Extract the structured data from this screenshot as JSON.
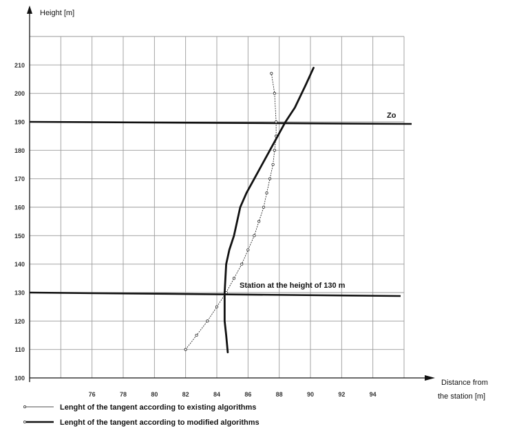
{
  "chart_data": {
    "type": "line",
    "ylabel": "Height [m]",
    "xlabel_lines": [
      "Distance from",
      "the station [m]"
    ],
    "x_ticks": [
      76,
      78,
      80,
      82,
      84,
      86,
      88,
      90,
      92,
      94
    ],
    "y_ticks": [
      100,
      110,
      120,
      130,
      140,
      150,
      160,
      170,
      180,
      190,
      200,
      210
    ],
    "xlim": [
      72,
      96
    ],
    "ylim": [
      100,
      220
    ],
    "grid": true,
    "series": [
      {
        "name": "Lenght of the tangent according to existing algorithms",
        "style": "thin-circles",
        "x": [
          82.0,
          82.7,
          83.4,
          84.0,
          84.6,
          85.1,
          85.6,
          86.0,
          86.4,
          86.7,
          87.0,
          87.2,
          87.4,
          87.6,
          87.7,
          87.8,
          87.8,
          87.7,
          87.5
        ],
        "y": [
          110,
          115,
          120,
          125,
          130,
          135,
          140,
          145,
          150,
          155,
          160,
          165,
          170,
          175,
          180,
          185,
          190,
          200,
          207
        ]
      },
      {
        "name": "Lenght of the tangent according to modified algorithms",
        "style": "thick-solid",
        "x": [
          84.7,
          84.6,
          84.5,
          84.5,
          84.6,
          84.8,
          85.1,
          85.5,
          85.9,
          86.4,
          86.9,
          87.4,
          87.9,
          88.4,
          89.0,
          89.7,
          90.2
        ],
        "y": [
          109,
          115,
          120,
          130,
          140,
          145,
          150,
          160,
          165,
          170,
          175,
          180,
          185,
          190,
          195,
          203,
          209
        ]
      }
    ],
    "reference_lines": [
      {
        "y": 190,
        "label": "Zo"
      },
      {
        "y": 130,
        "label": "Station at the height of 130 m"
      }
    ]
  },
  "colors": {
    "line": "#111111",
    "grid": "#9a9a9a",
    "background": "#ffffff"
  }
}
